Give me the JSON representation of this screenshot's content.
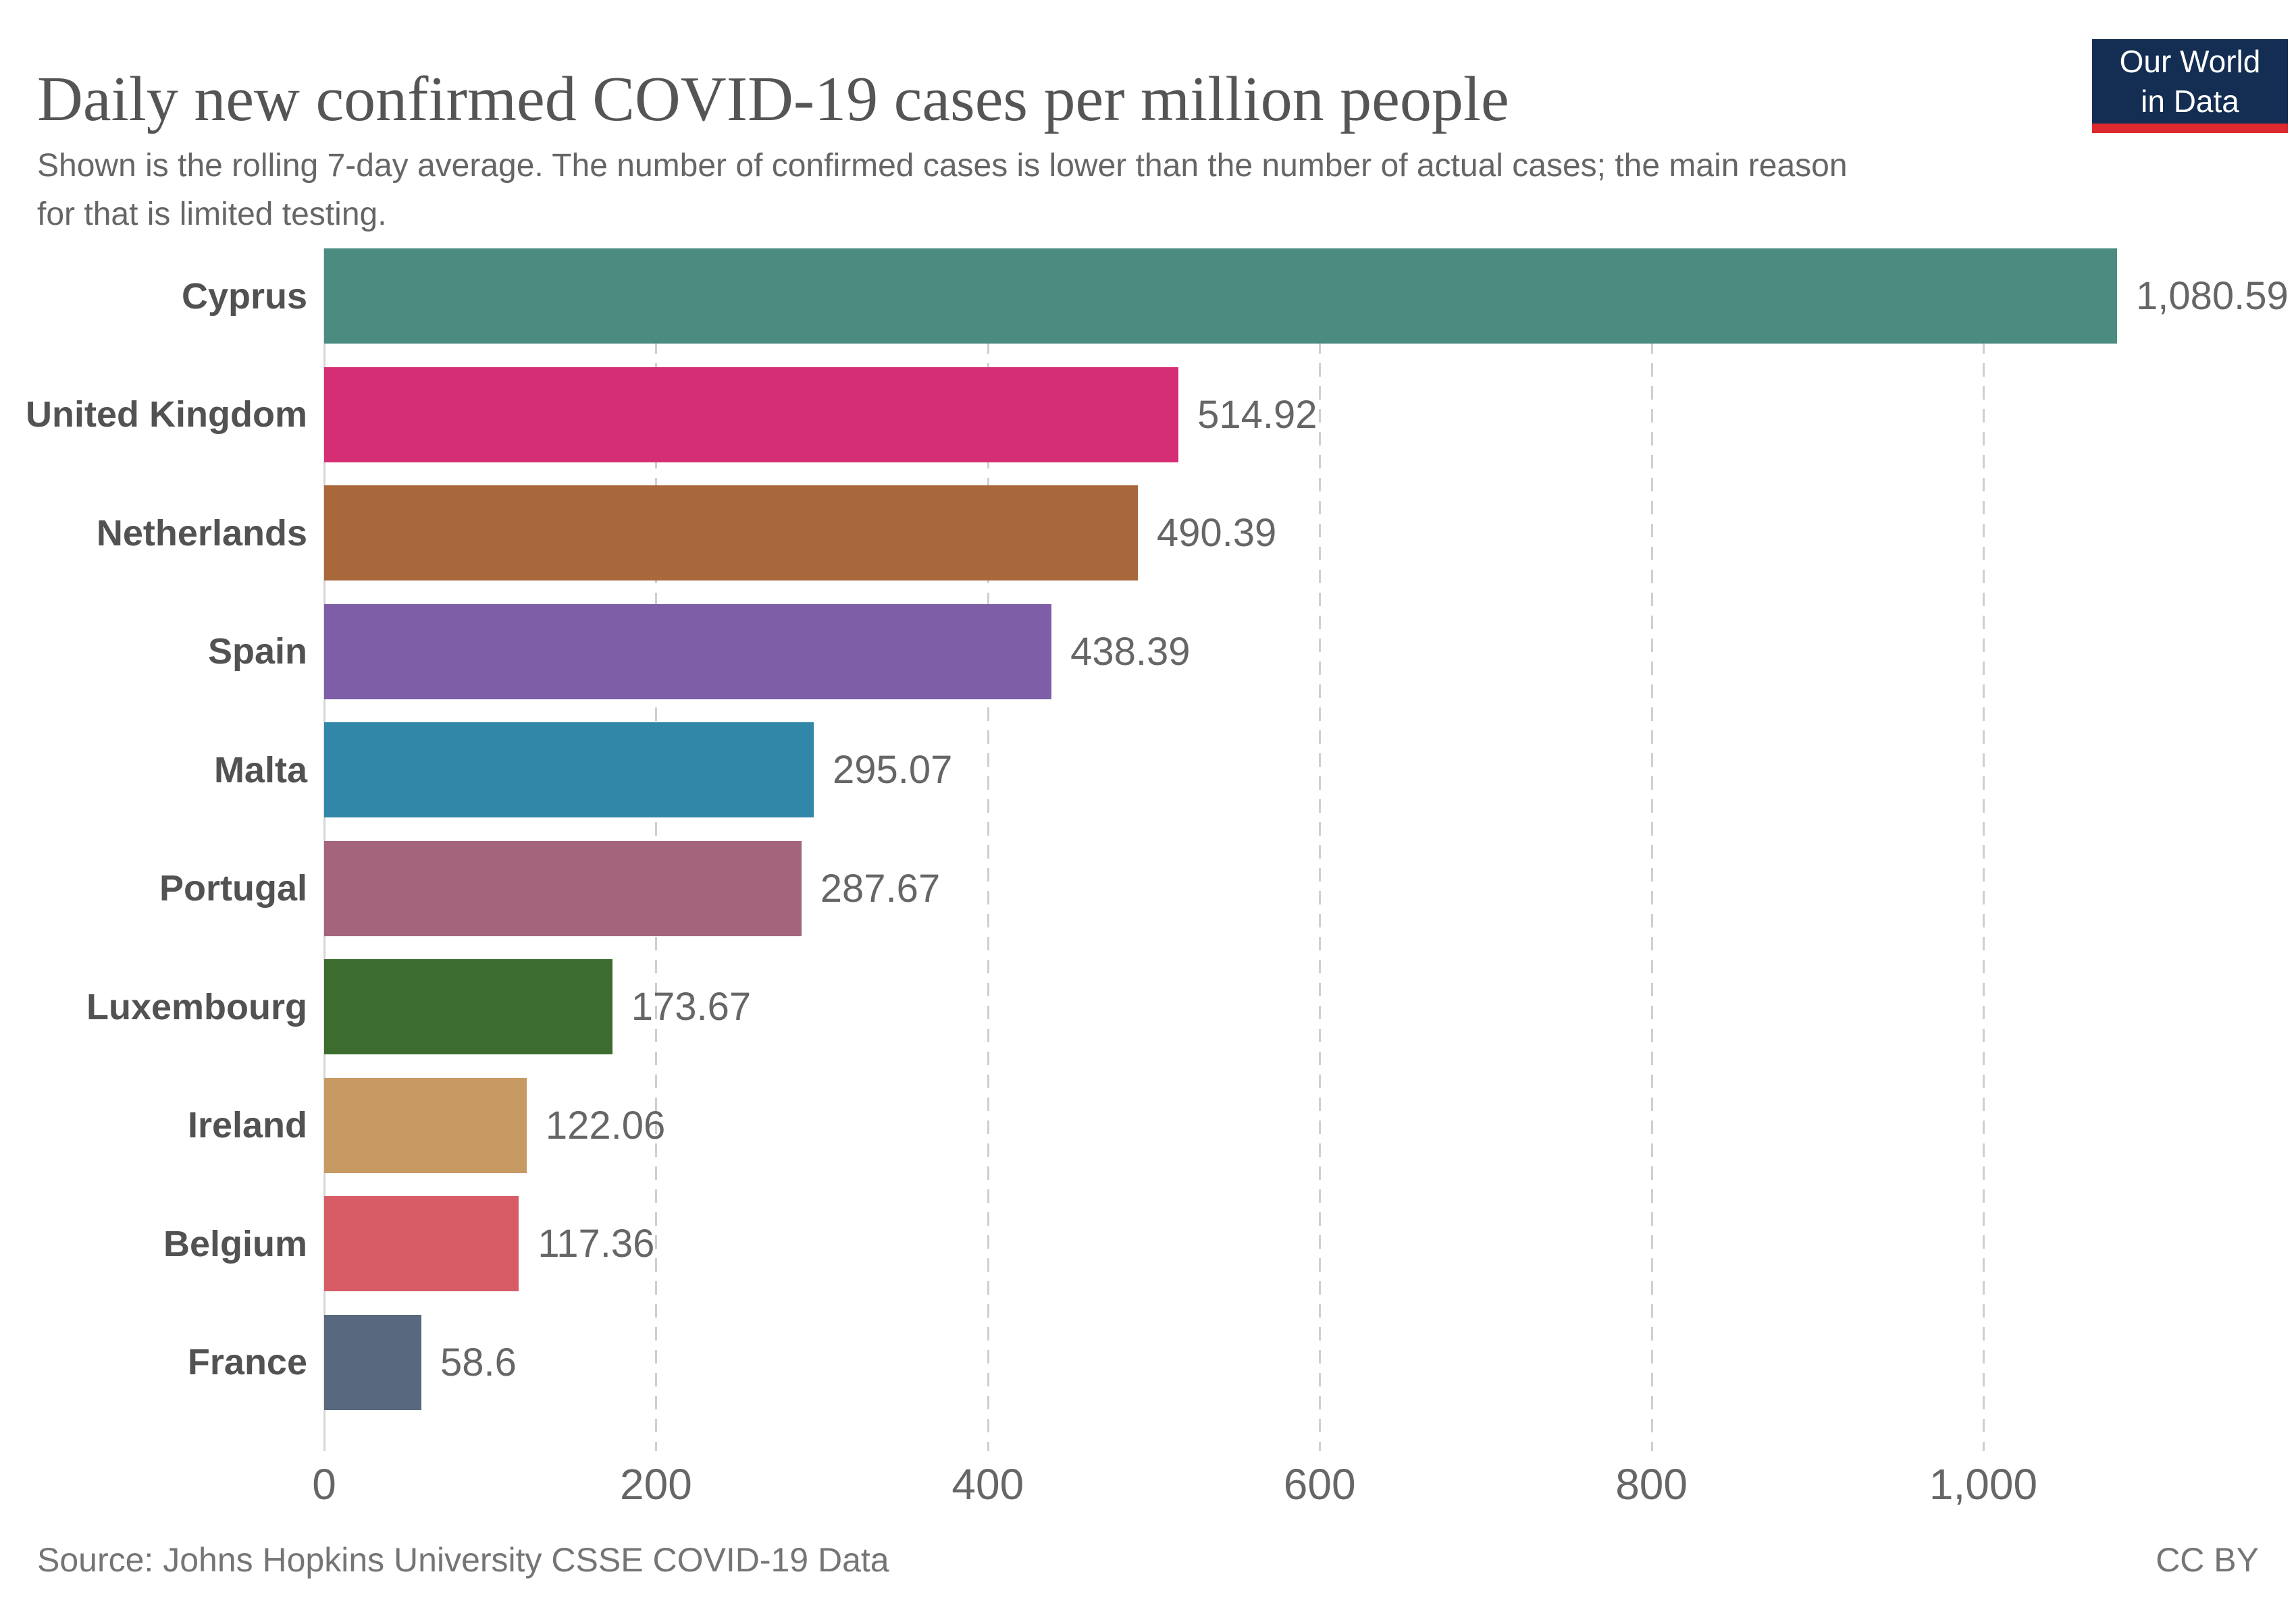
{
  "header": {
    "title": "Daily new confirmed COVID-19 cases per million people",
    "subtitle": "Shown is the rolling 7-day average. The number of confirmed cases is lower than the number of actual cases; the main reason for that is limited testing.",
    "logo": {
      "line1": "Our World",
      "line2": "in Data",
      "bg_color": "#132E52",
      "accent_color": "#DC2A2E"
    }
  },
  "chart_data": {
    "type": "bar",
    "orientation": "horizontal",
    "title": "Daily new confirmed COVID-19 cases per million people",
    "categories": [
      "Cyprus",
      "United Kingdom",
      "Netherlands",
      "Spain",
      "Malta",
      "Portugal",
      "Luxembourg",
      "Ireland",
      "Belgium",
      "France"
    ],
    "values": [
      1080.59,
      514.92,
      490.39,
      438.39,
      295.07,
      287.67,
      173.67,
      122.06,
      117.36,
      58.6
    ],
    "value_labels": [
      "1,080.59",
      "514.92",
      "490.39",
      "438.39",
      "295.07",
      "287.67",
      "173.67",
      "122.06",
      "117.36",
      "58.6"
    ],
    "bar_colors": [
      "#4C8B80",
      "#D52E74",
      "#A8683C",
      "#7E5FA7",
      "#3187A8",
      "#A4647B",
      "#3D6C2F",
      "#C89A63",
      "#D75C66",
      "#58697F"
    ],
    "xlabel": "",
    "ylabel": "",
    "xlim": [
      0,
      1083
    ],
    "xticks": {
      "values": [
        0,
        200,
        400,
        600,
        800,
        1000
      ],
      "labels": [
        "0",
        "200",
        "400",
        "600",
        "800",
        "1,000"
      ]
    },
    "grid": "vertical-dashed",
    "legend": "none",
    "gridline_color": "#cfcfcf",
    "axis_line_color": "#d6d6d6"
  },
  "footer": {
    "source": "Source: Johns Hopkins University CSSE COVID-19 Data",
    "license": "CC BY"
  }
}
